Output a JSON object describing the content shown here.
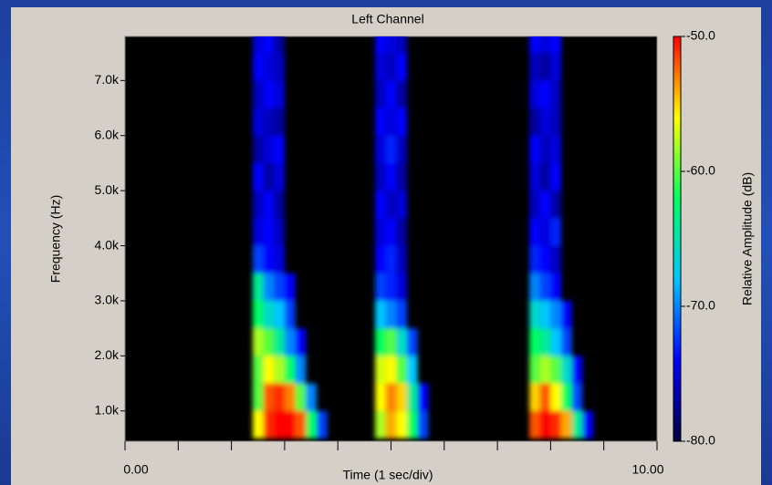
{
  "chart_data": {
    "type": "spectrogram",
    "title": "Left Channel",
    "xlabel": "Time (1 sec/div)",
    "ylabel": "Frequency (Hz)",
    "colorbar_label": "Relative Amplitude (dB)",
    "xlim": [
      0,
      10
    ],
    "xticks": [
      {
        "value": 0,
        "label": "0.00"
      },
      {
        "value": 10,
        "label": "10.00"
      }
    ],
    "xminorticks": [
      1,
      2,
      3,
      4,
      5,
      6,
      7,
      8,
      9
    ],
    "ylim": [
      450,
      7800
    ],
    "yticks": [
      {
        "value": 1000,
        "label": "1.0k"
      },
      {
        "value": 2000,
        "label": "2.0k"
      },
      {
        "value": 3000,
        "label": "3.0k"
      },
      {
        "value": 4000,
        "label": "4.0k"
      },
      {
        "value": 5000,
        "label": "5.0k"
      },
      {
        "value": 6000,
        "label": "6.0k"
      },
      {
        "value": 7000,
        "label": "7.0k"
      }
    ],
    "colorlim": [
      -80,
      -50
    ],
    "colorticks": [
      {
        "value": -50,
        "label": "-50.0"
      },
      {
        "value": -60,
        "label": "-60.0"
      },
      {
        "value": -70,
        "label": "-70.0"
      },
      {
        "value": -80,
        "label": "-80.0"
      }
    ],
    "colormap": [
      "#000040",
      "#0000ff",
      "#00c8ff",
      "#00ff60",
      "#ffff00",
      "#ff0000"
    ],
    "cell_width": 0.2,
    "cell_height": 500,
    "x": [
      2.5,
      2.7,
      2.9,
      3.1,
      3.3,
      3.5,
      3.7,
      4.8,
      5.0,
      5.2,
      5.4,
      5.6,
      7.7,
      7.9,
      8.1,
      8.3,
      8.5,
      8.7
    ],
    "y": [
      750,
      1250,
      1750,
      2250,
      2750,
      3250,
      3750,
      4250,
      4750,
      5250,
      5750,
      6250,
      6750,
      7250,
      7750
    ],
    "values": [
      [
        -56,
        -51,
        -50,
        -50,
        -52,
        -62,
        -72,
        -58,
        -54,
        -56,
        -62,
        -72,
        -52,
        -50,
        -51,
        -54,
        -64,
        -74
      ],
      [
        -60,
        -52,
        -51,
        -53,
        -60,
        -70,
        null,
        -56,
        -53,
        -55,
        -64,
        -74,
        -55,
        -52,
        -56,
        -62,
        -72,
        null
      ],
      [
        -60,
        -56,
        -58,
        -62,
        -70,
        null,
        null,
        -57,
        -56,
        -60,
        -68,
        null,
        -60,
        -58,
        -60,
        -66,
        -74,
        null
      ],
      [
        -58,
        -60,
        -64,
        -70,
        -74,
        null,
        null,
        -62,
        -60,
        -66,
        -72,
        null,
        -62,
        -64,
        -68,
        -72,
        null,
        null
      ],
      [
        -62,
        -66,
        -68,
        -72,
        null,
        null,
        null,
        -68,
        -70,
        -72,
        null,
        null,
        -66,
        -68,
        -70,
        -74,
        null,
        null
      ],
      [
        -64,
        -70,
        -72,
        -74,
        null,
        null,
        null,
        -72,
        -73,
        -75,
        null,
        null,
        -70,
        -72,
        -74,
        null,
        null,
        null
      ],
      [
        -72,
        -74,
        -75,
        null,
        null,
        null,
        null,
        -74,
        -73,
        -76,
        null,
        null,
        -73,
        -74,
        -76,
        null,
        null,
        null
      ],
      [
        -75,
        -74,
        -76,
        null,
        null,
        null,
        null,
        -75,
        -74,
        -77,
        null,
        null,
        -74,
        -75,
        -73,
        null,
        null,
        null
      ],
      [
        -76,
        -74,
        -77,
        null,
        null,
        null,
        null,
        -74,
        -76,
        -75,
        null,
        null,
        -76,
        -74,
        -77,
        null,
        null,
        null
      ],
      [
        -74,
        -77,
        -75,
        null,
        null,
        null,
        null,
        -76,
        -74,
        -77,
        null,
        null,
        -75,
        -77,
        -74,
        null,
        null,
        null
      ],
      [
        -77,
        -75,
        -74,
        null,
        null,
        null,
        null,
        -75,
        -73,
        -76,
        null,
        null,
        -74,
        -76,
        -75,
        null,
        null,
        null
      ],
      [
        -75,
        -76,
        -77,
        null,
        null,
        null,
        null,
        -74,
        -75,
        -74,
        null,
        null,
        -77,
        -75,
        -76,
        null,
        null,
        null
      ],
      [
        -76,
        -74,
        -75,
        null,
        null,
        null,
        null,
        -76,
        -74,
        -77,
        null,
        null,
        -75,
        -74,
        -76,
        null,
        null,
        null
      ],
      [
        -74,
        -75,
        -76,
        null,
        null,
        null,
        null,
        -75,
        -76,
        -74,
        null,
        null,
        -76,
        -77,
        -75,
        null,
        null,
        null
      ],
      [
        -75,
        -74,
        -77,
        null,
        null,
        null,
        null,
        -74,
        -75,
        -76,
        null,
        null,
        -74,
        -75,
        -74,
        null,
        null,
        null
      ]
    ]
  }
}
